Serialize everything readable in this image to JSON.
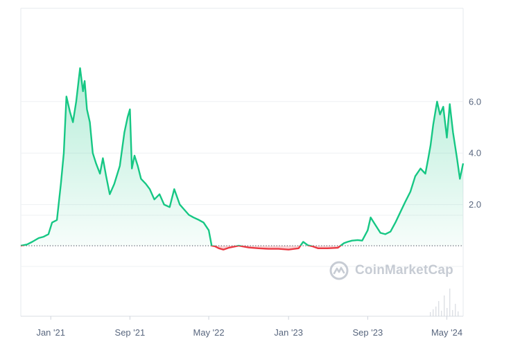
{
  "chart_data": {
    "type": "area",
    "baseline": 0.4,
    "ylim": [
      0,
      7.5
    ],
    "y_ticks": [
      {
        "value": 2.0,
        "label": "2.0"
      },
      {
        "value": 4.0,
        "label": "4.0"
      },
      {
        "value": 6.0,
        "label": "6.0"
      }
    ],
    "x_ticks": [
      {
        "date": "2021-01",
        "label": "Jan '21"
      },
      {
        "date": "2021-09",
        "label": "Sep '21"
      },
      {
        "date": "2022-05",
        "label": "May '22"
      },
      {
        "date": "2023-01",
        "label": "Jan '23"
      },
      {
        "date": "2023-09",
        "label": "Sep '23"
      },
      {
        "date": "2024-05",
        "label": "May '24"
      }
    ],
    "colors": {
      "above": "#16c784",
      "below": "#ea3943",
      "grid": "#eef0f3",
      "axis": "#58667e"
    },
    "series": [
      {
        "x": [
          "2020-10-01",
          "2020-10-20",
          "2020-11-05",
          "2020-11-25",
          "2020-12-10",
          "2020-12-25",
          "2021-01-05",
          "2021-01-20",
          "2021-02-01",
          "2021-02-10",
          "2021-02-18",
          "2021-03-01",
          "2021-03-10",
          "2021-03-20",
          "2021-04-01",
          "2021-04-10",
          "2021-04-15",
          "2021-04-22",
          "2021-05-01",
          "2021-05-10",
          "2021-05-20",
          "2021-06-01",
          "2021-06-10",
          "2021-06-20",
          "2021-07-01",
          "2021-07-15",
          "2021-08-01",
          "2021-08-15",
          "2021-08-25",
          "2021-09-01",
          "2021-09-07",
          "2021-09-15",
          "2021-09-25",
          "2021-10-05",
          "2021-10-20",
          "2021-11-01",
          "2021-11-15",
          "2021-12-01",
          "2021-12-15",
          "2022-01-01",
          "2022-01-15",
          "2022-02-01",
          "2022-02-15",
          "2022-03-01",
          "2022-03-15",
          "2022-04-01",
          "2022-04-15",
          "2022-05-01",
          "2022-05-10",
          "2022-05-20",
          "2022-06-01",
          "2022-06-15",
          "2022-07-01",
          "2022-08-01",
          "2022-09-01",
          "2022-10-01",
          "2022-11-01",
          "2022-12-01",
          "2023-01-01",
          "2023-02-01",
          "2023-02-15",
          "2023-03-01",
          "2023-03-15",
          "2023-04-01",
          "2023-05-01",
          "2023-06-01",
          "2023-06-20",
          "2023-07-01",
          "2023-07-15",
          "2023-08-01",
          "2023-08-15",
          "2023-09-01",
          "2023-09-10",
          "2023-09-25",
          "2023-10-10",
          "2023-10-25",
          "2023-11-10",
          "2023-11-25",
          "2023-12-10",
          "2023-12-25",
          "2024-01-10",
          "2024-01-25",
          "2024-02-10",
          "2024-02-25",
          "2024-03-05",
          "2024-03-12",
          "2024-03-20",
          "2024-04-01",
          "2024-04-10",
          "2024-04-20",
          "2024-05-01",
          "2024-05-10",
          "2024-05-20",
          "2024-06-01",
          "2024-06-10",
          "2024-06-20"
        ],
        "values": [
          0.4,
          0.45,
          0.55,
          0.7,
          0.75,
          0.85,
          1.3,
          1.4,
          2.8,
          4.0,
          6.2,
          5.6,
          5.2,
          6.0,
          7.3,
          6.4,
          6.8,
          5.7,
          5.2,
          4.0,
          3.6,
          3.2,
          3.8,
          3.1,
          2.4,
          2.8,
          3.5,
          4.8,
          5.4,
          5.7,
          3.4,
          3.9,
          3.5,
          3.0,
          2.8,
          2.6,
          2.2,
          2.4,
          2.0,
          1.9,
          2.6,
          2.0,
          1.8,
          1.6,
          1.5,
          1.4,
          1.3,
          1.0,
          0.4,
          0.38,
          0.3,
          0.25,
          0.32,
          0.4,
          0.33,
          0.3,
          0.28,
          0.28,
          0.25,
          0.3,
          0.55,
          0.42,
          0.38,
          0.3,
          0.3,
          0.32,
          0.5,
          0.55,
          0.6,
          0.62,
          0.6,
          1.0,
          1.5,
          1.2,
          0.9,
          0.85,
          0.95,
          1.3,
          1.7,
          2.1,
          2.5,
          3.1,
          3.4,
          3.2,
          3.8,
          4.3,
          5.1,
          6.0,
          5.5,
          5.8,
          4.6,
          5.9,
          4.8,
          3.8,
          3.0,
          3.6
        ]
      }
    ]
  },
  "watermark": {
    "text": "CoinMarketCap",
    "icon": "coinmarketcap-logo-icon"
  }
}
